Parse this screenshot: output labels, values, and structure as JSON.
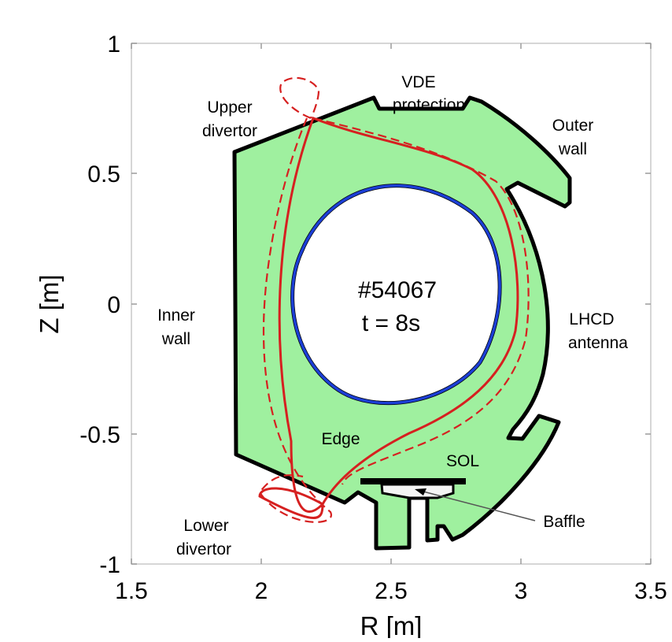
{
  "chart_data": {
    "type": "diagram",
    "xlabel": "R [m]",
    "ylabel": "Z [m]",
    "xlim": [
      1.5,
      3.5
    ],
    "ylim": [
      -1,
      1
    ],
    "xticks": [
      "1.5",
      "2",
      "2.5",
      "3",
      "3.5"
    ],
    "yticks": [
      "1",
      "0.5",
      "0",
      "-0.5",
      "-1"
    ],
    "shot_number": "#54067",
    "time": "t = 8s",
    "labels": {
      "vde": [
        "VDE",
        "protection"
      ],
      "upper_divertor": [
        "Upper",
        "divertor"
      ],
      "outer_wall": [
        "Outer",
        "wall"
      ],
      "inner_wall": [
        "Inner",
        "wall"
      ],
      "lhcd": [
        "LHCD",
        "antenna"
      ],
      "edge": "Edge",
      "sol": "SOL",
      "lower_divertor": [
        "Lower",
        "divertor"
      ],
      "baffle": "Baffle"
    },
    "colors": {
      "vessel_fill": "#9ff09f",
      "outline": "#000000",
      "plasma_core": "#1c3fd6",
      "separatrix": "#d62020"
    }
  }
}
